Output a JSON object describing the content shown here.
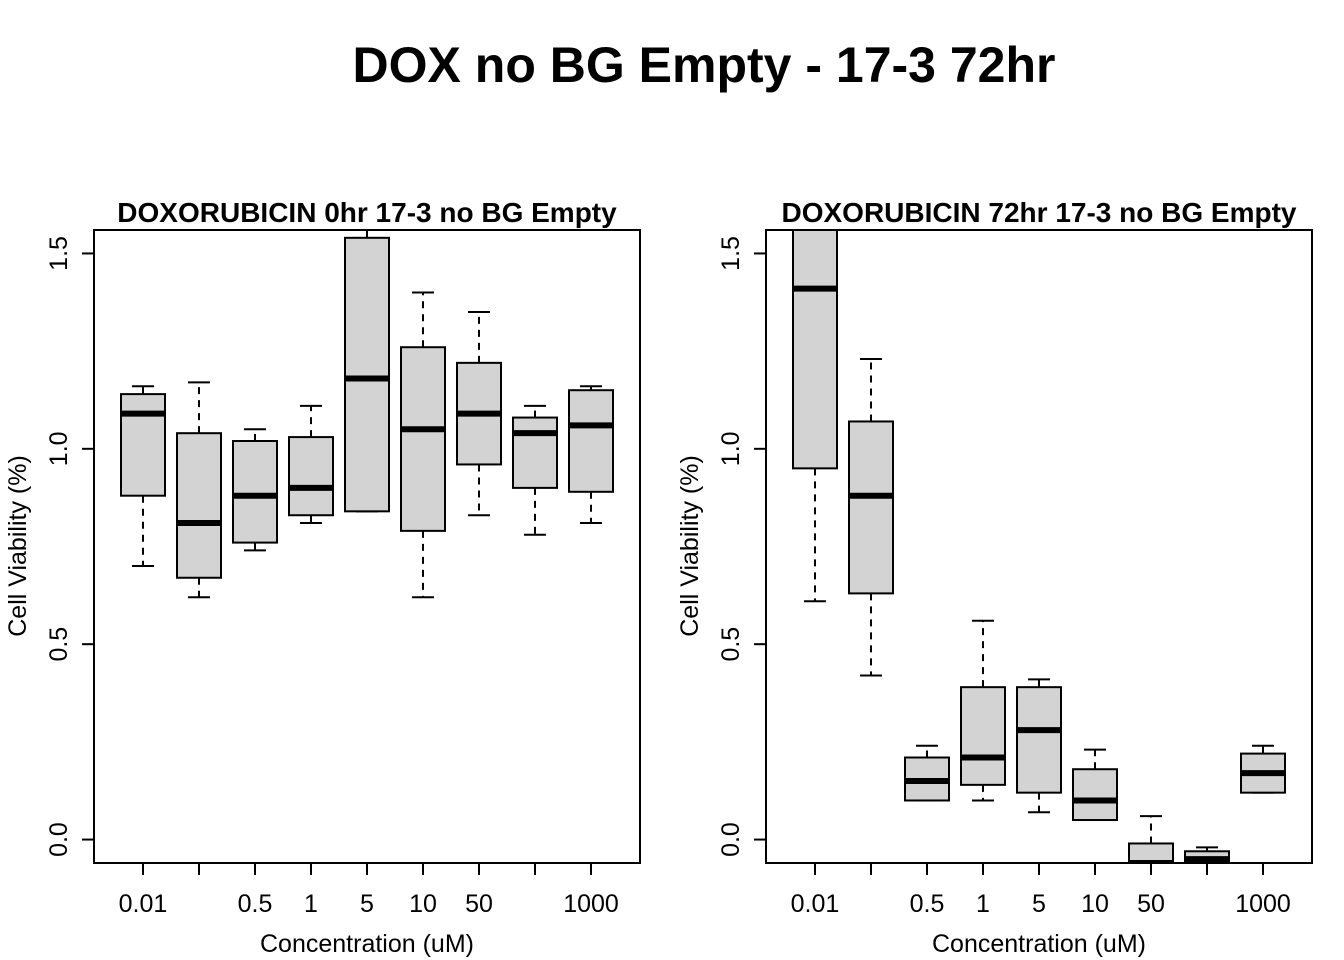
{
  "figure": {
    "title": "DOX no BG Empty - 17-3 72hr"
  },
  "chart_data": [
    {
      "type": "boxplot",
      "title": "DOXORUBICIN 0hr 17-3 no BG Empty",
      "xlabel": "Concentration (uM)",
      "ylabel": "Cell Viability (%)",
      "ylim": [
        -0.06,
        1.56
      ],
      "yticks": [
        "0.0",
        "0.5",
        "1.0",
        "1.5"
      ],
      "ytick_values": [
        0,
        0.5,
        1.0,
        1.5
      ],
      "categories": [
        "0.01",
        "",
        "0.5",
        "1",
        "5",
        "10",
        "50",
        "",
        "1000"
      ],
      "boxes": [
        {
          "whisker_low": 0.7,
          "q1": 0.88,
          "median": 1.09,
          "q3": 1.14,
          "whisker_high": 1.16
        },
        {
          "whisker_low": 0.62,
          "q1": 0.67,
          "median": 0.81,
          "q3": 1.04,
          "whisker_high": 1.17
        },
        {
          "whisker_low": 0.74,
          "q1": 0.76,
          "median": 0.88,
          "q3": 1.02,
          "whisker_high": 1.05
        },
        {
          "whisker_low": 0.81,
          "q1": 0.83,
          "median": 0.9,
          "q3": 1.03,
          "whisker_high": 1.11
        },
        {
          "whisker_low": 0.84,
          "q1": 0.84,
          "median": 1.18,
          "q3": 1.54,
          "whisker_high": 1.56
        },
        {
          "whisker_low": 0.62,
          "q1": 0.79,
          "median": 1.05,
          "q3": 1.26,
          "whisker_high": 1.4
        },
        {
          "whisker_low": 0.83,
          "q1": 0.96,
          "median": 1.09,
          "q3": 1.22,
          "whisker_high": 1.35
        },
        {
          "whisker_low": 0.78,
          "q1": 0.9,
          "median": 1.04,
          "q3": 1.08,
          "whisker_high": 1.11
        },
        {
          "whisker_low": 0.81,
          "q1": 0.89,
          "median": 1.06,
          "q3": 1.15,
          "whisker_high": 1.16
        }
      ],
      "box_color": "#d3d3d3",
      "grid": false
    },
    {
      "type": "boxplot",
      "title": "DOXORUBICIN 72hr 17-3 no BG Empty",
      "xlabel": "Concentration (uM)",
      "ylabel": "Cell Viability (%)",
      "ylim": [
        -0.06,
        1.56
      ],
      "yticks": [
        "0.0",
        "0.5",
        "1.0",
        "1.5"
      ],
      "ytick_values": [
        0,
        0.5,
        1.0,
        1.5
      ],
      "categories": [
        "0.01",
        "",
        "0.5",
        "1",
        "5",
        "10",
        "50",
        "",
        "1000"
      ],
      "boxes": [
        {
          "whisker_low": 0.61,
          "q1": 0.95,
          "median": 1.41,
          "q3": 1.56,
          "whisker_high": 1.56
        },
        {
          "whisker_low": 0.42,
          "q1": 0.63,
          "median": 0.88,
          "q3": 1.07,
          "whisker_high": 1.23
        },
        {
          "whisker_low": 0.1,
          "q1": 0.1,
          "median": 0.15,
          "q3": 0.21,
          "whisker_high": 0.24
        },
        {
          "whisker_low": 0.1,
          "q1": 0.14,
          "median": 0.21,
          "q3": 0.39,
          "whisker_high": 0.56
        },
        {
          "whisker_low": 0.07,
          "q1": 0.12,
          "median": 0.28,
          "q3": 0.39,
          "whisker_high": 0.41
        },
        {
          "whisker_low": 0.05,
          "q1": 0.05,
          "median": 0.1,
          "q3": 0.18,
          "whisker_high": 0.23
        },
        {
          "whisker_low": -0.06,
          "q1": -0.06,
          "median": -0.06,
          "q3": -0.01,
          "whisker_high": 0.06
        },
        {
          "whisker_low": -0.06,
          "q1": -0.06,
          "median": -0.05,
          "q3": -0.03,
          "whisker_high": -0.02
        },
        {
          "whisker_low": 0.12,
          "q1": 0.12,
          "median": 0.17,
          "q3": 0.22,
          "whisker_high": 0.24
        }
      ],
      "box_color": "#d3d3d3",
      "grid": false
    }
  ]
}
